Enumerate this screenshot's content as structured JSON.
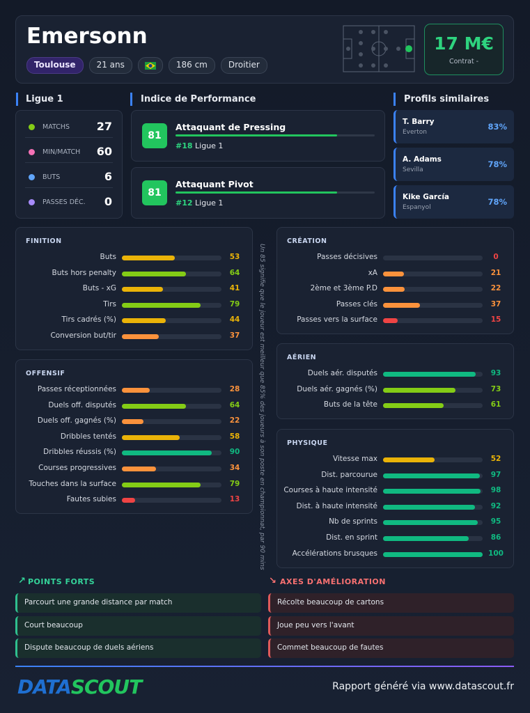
{
  "header": {
    "name": "Emersonn",
    "tags": [
      "Toulouse",
      "21 ans",
      "186 cm",
      "Droitier"
    ],
    "value": "17 M€",
    "value_label": "Contrat -"
  },
  "league": {
    "title": "Ligue 1",
    "stats": [
      {
        "label": "MATCHS",
        "value": 27
      },
      {
        "label": "MIN/MATCH",
        "value": 60
      },
      {
        "label": "BUTS",
        "value": 6
      },
      {
        "label": "PASSES DÉC.",
        "value": 0
      }
    ]
  },
  "performance": {
    "title": "Indice de Performance",
    "roles": [
      {
        "score": 81,
        "name": "Attaquant de Pressing",
        "rank": "#18",
        "league": "Ligue 1"
      },
      {
        "score": 81,
        "name": "Attaquant Pivot",
        "rank": "#12",
        "league": "Ligue 1"
      }
    ]
  },
  "similar": {
    "title": "Profils similaires",
    "players": [
      {
        "name": "T. Barry",
        "club": "Everton",
        "similarity": "83%"
      },
      {
        "name": "A. Adams",
        "club": "Sevilla",
        "similarity": "78%"
      },
      {
        "name": "Kike García",
        "club": "Espanyol",
        "similarity": "78%"
      }
    ]
  },
  "sections": [
    {
      "title": "FINITION",
      "metrics": [
        {
          "label": "Buts",
          "value": 53
        },
        {
          "label": "Buts hors penalty",
          "value": 64
        },
        {
          "label": "Buts - xG",
          "value": 41
        },
        {
          "label": "Tirs",
          "value": 79
        },
        {
          "label": "Tirs cadrés (%)",
          "value": 44
        },
        {
          "label": "Conversion but/tir",
          "value": 37
        }
      ]
    },
    {
      "title": "OFFENSIF",
      "metrics": [
        {
          "label": "Passes réceptionnées",
          "value": 28
        },
        {
          "label": "Duels off. disputés",
          "value": 64
        },
        {
          "label": "Duels off. gagnés (%)",
          "value": 22
        },
        {
          "label": "Dribbles tentés",
          "value": 58
        },
        {
          "label": "Dribbles réussis (%)",
          "value": 90
        },
        {
          "label": "Courses progressives",
          "value": 34
        },
        {
          "label": "Touches dans la surface",
          "value": 79
        },
        {
          "label": "Fautes subies",
          "value": 13
        }
      ]
    },
    {
      "title": "CRÉATION",
      "metrics": [
        {
          "label": "Passes décisives",
          "value": 0
        },
        {
          "label": "xA",
          "value": 21
        },
        {
          "label": "2ème et 3ème P.D",
          "value": 22
        },
        {
          "label": "Passes clés",
          "value": 37
        },
        {
          "label": "Passes vers la surface",
          "value": 15
        }
      ]
    },
    {
      "title": "AÉRIEN",
      "metrics": [
        {
          "label": "Duels aér. disputés",
          "value": 93
        },
        {
          "label": "Duels aér. gagnés (%)",
          "value": 73
        },
        {
          "label": "Buts de la tête",
          "value": 61
        }
      ]
    },
    {
      "title": "PHYSIQUE",
      "metrics": [
        {
          "label": "Vitesse max",
          "value": 52
        },
        {
          "label": "Dist. parcourue",
          "value": 97
        },
        {
          "label": "Courses à haute intensité",
          "value": 98
        },
        {
          "label": "Dist. à haute intensité",
          "value": 92
        },
        {
          "label": "Nb de sprints",
          "value": 95
        },
        {
          "label": "Dist. en sprint",
          "value": 86
        },
        {
          "label": "Accélérations brusques",
          "value": 100
        }
      ]
    }
  ],
  "note": "Un 85 signifie que le joueur est meilleur que 85% des joueurs à son poste en championnat, par 90 mins",
  "strengths": {
    "title": "POINTS FORTS",
    "items": [
      "Parcourt une grande distance par match",
      "Court beaucoup",
      "Dispute beaucoup de duels aériens"
    ]
  },
  "improvements": {
    "title": "AXES D'AMÉLIORATION",
    "items": [
      "Récolte beaucoup de cartons",
      "Joue peu vers l'avant",
      "Commet beaucoup de fautes"
    ]
  },
  "footer": {
    "logo_1": "DATA",
    "logo_2": "SCOUT",
    "text": "Rapport généré via www.datascout.fr"
  }
}
